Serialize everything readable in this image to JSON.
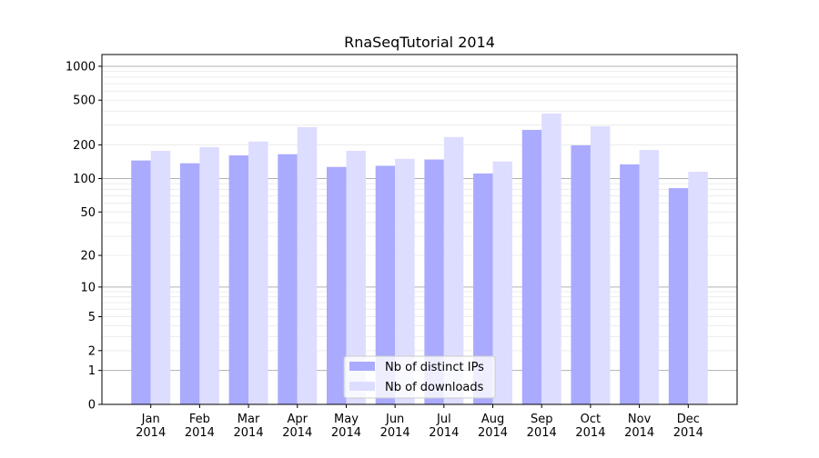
{
  "chart_data": {
    "type": "bar",
    "title": "RnaSeqTutorial 2014",
    "xlabel": "",
    "ylabel": "",
    "yscale": "log(1+y)",
    "ylim": [
      0,
      1200
    ],
    "yticks": [
      0,
      1,
      2,
      5,
      10,
      20,
      50,
      100,
      200,
      500,
      1000
    ],
    "grid": true,
    "legend_placement": "lower center",
    "categories": [
      "Jan\n2014",
      "Feb\n2014",
      "Mar\n2014",
      "Apr\n2014",
      "May\n2014",
      "Jun\n2014",
      "Jul\n2014",
      "Aug\n2014",
      "Sep\n2014",
      "Oct\n2014",
      "Nov\n2014",
      "Dec\n2014"
    ],
    "series": [
      {
        "name": "Nb of distinct IPs",
        "color": "#aaaaff",
        "values": [
          145,
          137,
          161,
          165,
          127,
          130,
          148,
          111,
          272,
          198,
          134,
          82
        ]
      },
      {
        "name": "Nb of downloads",
        "color": "#ddddff",
        "values": [
          177,
          191,
          214,
          288,
          177,
          150,
          235,
          142,
          380,
          293,
          180,
          115
        ]
      }
    ]
  }
}
